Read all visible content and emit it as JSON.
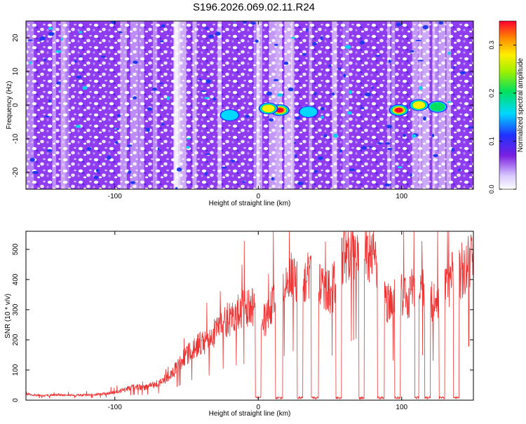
{
  "title": "S196.2026.069.02.11.R24",
  "spectrogram": {
    "ylabel": "Frequency (Hz)",
    "xlabel": "Height of straight line (km)",
    "xlim": [
      -162,
      150
    ],
    "ylim": [
      -25,
      25
    ],
    "x_ticks": [
      -100,
      0,
      100
    ],
    "y_ticks": [
      -20,
      -10,
      0,
      10,
      20
    ],
    "colorbar": {
      "label": "Normalized spectral amplitude",
      "range": [
        0.0,
        0.35
      ],
      "ticks": [
        0.0,
        0.1,
        0.2,
        0.3
      ],
      "tick_labels": [
        "0.0",
        "0.1",
        "0.2",
        "0.3"
      ]
    },
    "hotspots": [
      {
        "x": 15,
        "f": -1.5,
        "amp": 0.33
      },
      {
        "x": 98,
        "f": -1.5,
        "amp": 0.3
      },
      {
        "x": 7,
        "f": -1,
        "amp": 0.22
      },
      {
        "x": 112,
        "f": 0,
        "amp": 0.18
      },
      {
        "x": 125,
        "f": -0.5,
        "amp": 0.16
      },
      {
        "x": -20,
        "f": -3,
        "amp": 0.12
      },
      {
        "x": 35,
        "f": -2,
        "amp": 0.12
      }
    ]
  },
  "chart_data": {
    "type": "line",
    "title": "S196.2026.069.02.11.R24",
    "xlabel": "Height of straight line (km)",
    "ylabel": "SNR (10 * v/v)",
    "xlim": [
      -162,
      150
    ],
    "ylim": [
      0,
      560
    ],
    "x_ticks": [
      -100,
      0,
      100
    ],
    "y_ticks": [
      0,
      100,
      200,
      300,
      400,
      500
    ],
    "series": [
      {
        "name": "SNR",
        "color": "#ee3333",
        "x": [
          -162,
          -150,
          -140,
          -130,
          -120,
          -110,
          -100,
          -95,
          -90,
          -85,
          -80,
          -75,
          -70,
          -65,
          -60,
          -55,
          -50,
          -45,
          -40,
          -35,
          -30,
          -25,
          -20,
          -15,
          -10,
          -5,
          0,
          5,
          10,
          15,
          20,
          25,
          30,
          35,
          40,
          45,
          50,
          55,
          60,
          65,
          70,
          75,
          80,
          85,
          90,
          95,
          100,
          105,
          110,
          115,
          120,
          125,
          130,
          135,
          140,
          145,
          150
        ],
        "values": [
          20,
          15,
          18,
          16,
          17,
          20,
          25,
          32,
          40,
          45,
          40,
          50,
          55,
          70,
          90,
          120,
          150,
          170,
          190,
          200,
          230,
          260,
          270,
          290,
          300,
          320,
          250,
          270,
          320,
          330,
          390,
          410,
          400,
          410,
          390,
          380,
          360,
          390,
          470,
          490,
          520,
          500,
          480,
          350,
          320,
          330,
          350,
          340,
          380,
          370,
          330,
          320,
          360,
          400,
          420,
          440,
          460
        ],
        "dropouts": [
          -2,
          2,
          12,
          17,
          27,
          31,
          37,
          42,
          54,
          58,
          70,
          74,
          83,
          88,
          95,
          99,
          109,
          112,
          116,
          120,
          126,
          130,
          136,
          140
        ]
      }
    ]
  }
}
